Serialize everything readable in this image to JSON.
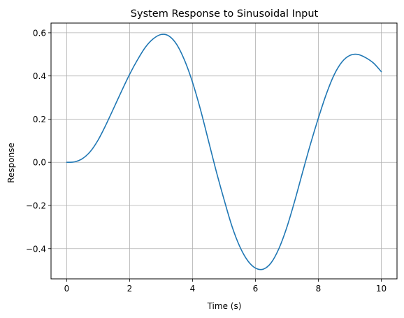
{
  "chart_data": {
    "type": "line",
    "title": "System Response to Sinusoidal Input",
    "xlabel": "Time (s)",
    "ylabel": "Response",
    "xlim": [
      -0.5,
      10.5
    ],
    "ylim": [
      -0.54,
      0.645
    ],
    "xticks": [
      0,
      2,
      4,
      6,
      8,
      10
    ],
    "xtick_labels": [
      "0",
      "2",
      "4",
      "6",
      "8",
      "10"
    ],
    "yticks": [
      -0.4,
      -0.2,
      0.0,
      0.2,
      0.4,
      0.6
    ],
    "ytick_labels": [
      "−0.4",
      "−0.2",
      "0.0",
      "0.2",
      "0.4",
      "0.6"
    ],
    "grid": true,
    "series": [
      {
        "color": "#1f77b4",
        "x": [
          0,
          0.25,
          0.5,
          0.75,
          1.0,
          1.25,
          1.5,
          1.75,
          2.0,
          2.25,
          2.5,
          2.75,
          3.0,
          3.25,
          3.5,
          3.75,
          4.0,
          4.25,
          4.5,
          4.75,
          5.0,
          5.25,
          5.5,
          5.75,
          6.0,
          6.25,
          6.5,
          6.75,
          7.0,
          7.25,
          7.5,
          7.75,
          8.0,
          8.25,
          8.5,
          8.75,
          9.0,
          9.25,
          9.5,
          9.75,
          10.0
        ],
        "y": [
          0.0,
          0.002,
          0.017,
          0.05,
          0.104,
          0.175,
          0.253,
          0.332,
          0.408,
          0.475,
          0.533,
          0.572,
          0.592,
          0.585,
          0.545,
          0.471,
          0.37,
          0.245,
          0.103,
          -0.04,
          -0.172,
          -0.295,
          -0.39,
          -0.455,
          -0.49,
          -0.495,
          -0.465,
          -0.398,
          -0.3,
          -0.178,
          -0.045,
          0.085,
          0.205,
          0.315,
          0.405,
          0.465,
          0.495,
          0.5,
          0.485,
          0.46,
          0.42
        ]
      }
    ]
  }
}
